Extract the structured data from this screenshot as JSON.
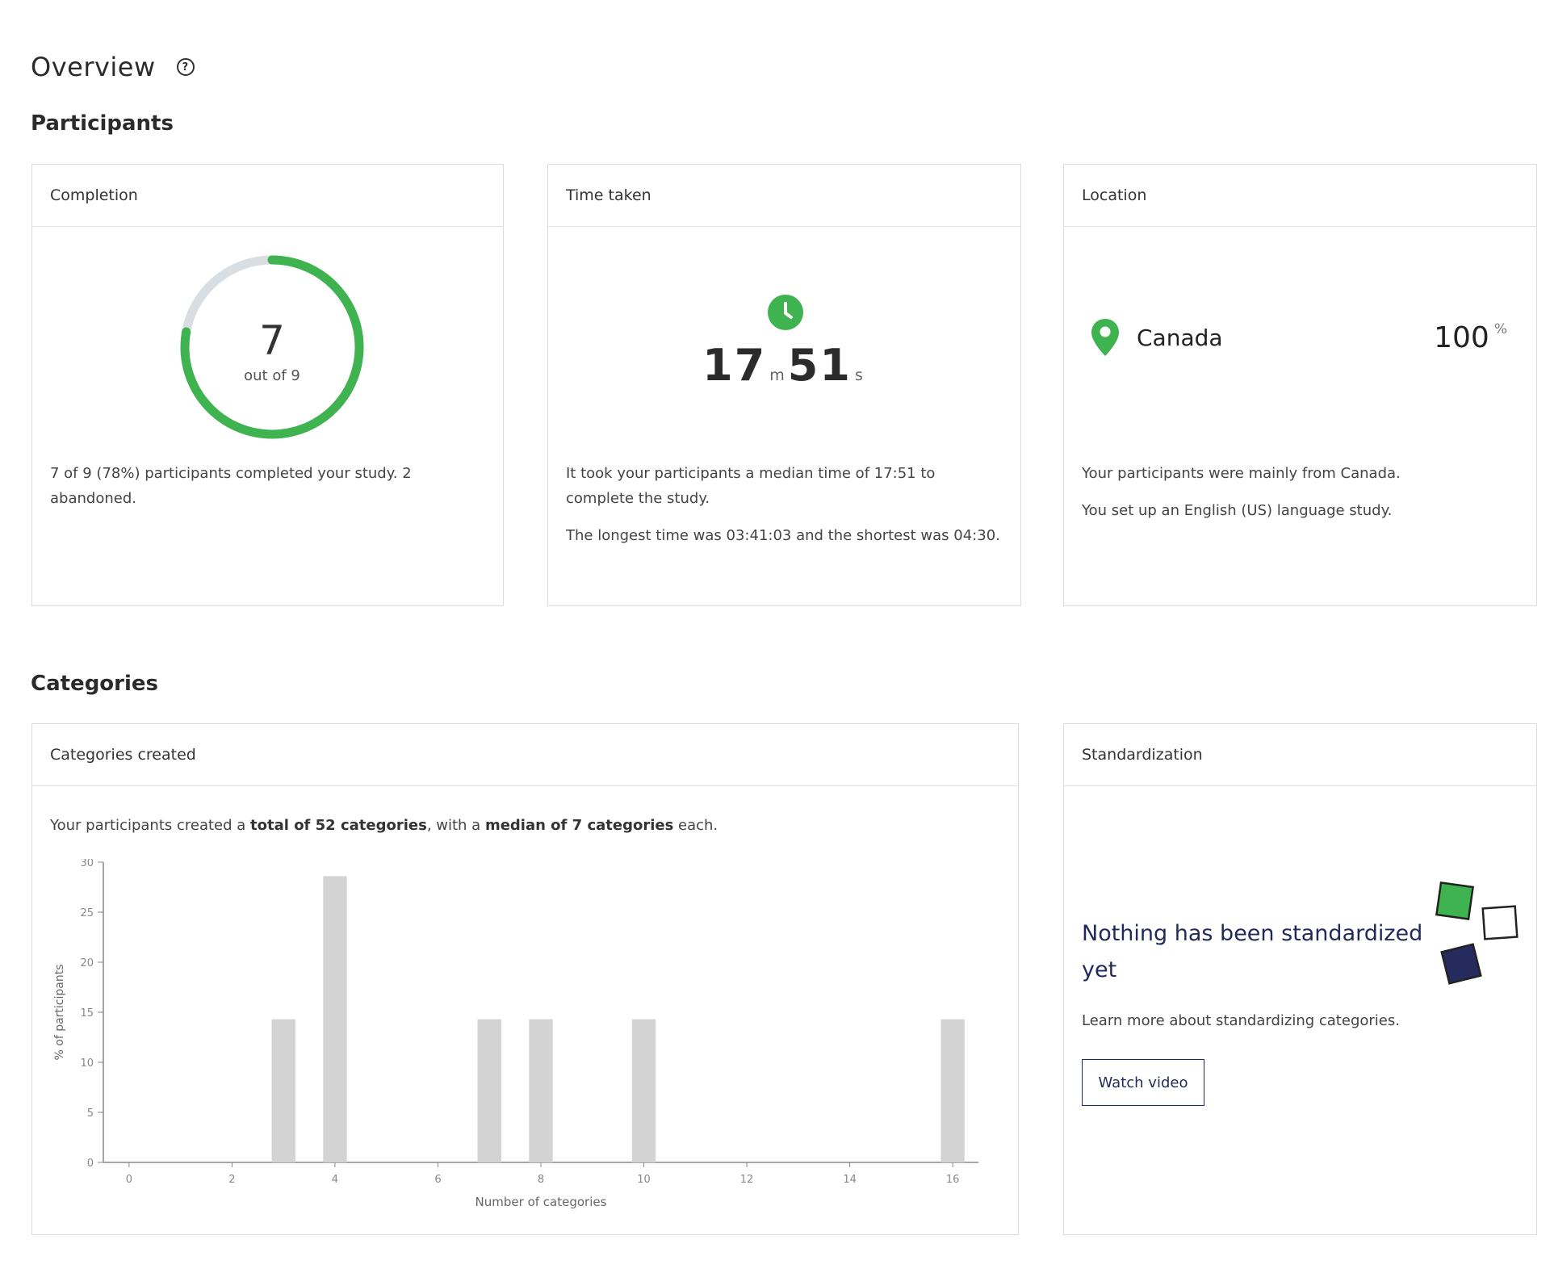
{
  "overview": {
    "title": "Overview"
  },
  "participants": {
    "title": "Participants",
    "completion": {
      "header": "Completion",
      "completed": 7,
      "total": 9,
      "count_label": "7",
      "out_of_label": "out of 9",
      "description": "7 of 9 (78%) participants completed your study. 2 abandoned.",
      "colors": {
        "progress": "#3fb34f",
        "track": "#d9dee2"
      }
    },
    "time_taken": {
      "header": "Time taken",
      "minutes": "17",
      "minutes_unit": "m",
      "seconds": "51",
      "seconds_unit": "s",
      "description_1": "It took your participants a median time of 17:51 to complete the study.",
      "description_2": "The longest time was 03:41:03 and the shortest was 04:30.",
      "icon": "clock-icon"
    },
    "location": {
      "header": "Location",
      "country": "Canada",
      "percent": "100",
      "percent_symbol": "%",
      "description_1": "Your participants were mainly from Canada.",
      "description_2": "You set up an English (US) language study.",
      "icon": "map-pin-icon"
    }
  },
  "categories": {
    "title": "Categories",
    "created": {
      "header": "Categories created",
      "summary_prefix": "Your participants created a ",
      "summary_total": "total of 52 categories",
      "summary_mid": ", with a ",
      "summary_median": "median of 7 categories",
      "summary_suffix": " each."
    },
    "standardization": {
      "header": "Standardization",
      "title": "Nothing has been standardized yet",
      "description": "Learn more about standardizing categories.",
      "button_label": "Watch video",
      "colors": {
        "green": "#3fb34f",
        "navy": "#262b5e"
      }
    }
  },
  "chart_data": {
    "type": "bar",
    "xlabel": "Number of categories",
    "ylabel": "% of participants",
    "xlim": [
      -0.5,
      16.5
    ],
    "ylim": [
      0,
      30
    ],
    "xticks": [
      0,
      2,
      4,
      6,
      8,
      10,
      12,
      14,
      16
    ],
    "yticks": [
      0,
      5,
      10,
      15,
      20,
      25,
      30
    ],
    "x": [
      3,
      4,
      7,
      8,
      10,
      16
    ],
    "values": [
      14.3,
      28.6,
      14.3,
      14.3,
      14.3,
      14.3
    ],
    "bar_color": "#d3d3d3"
  }
}
